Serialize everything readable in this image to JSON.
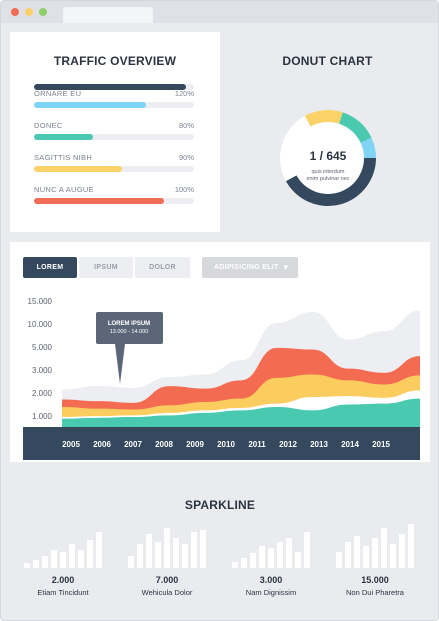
{
  "traffic": {
    "title": "TRAFFIC OVERVIEW",
    "bars": [
      {
        "label": "",
        "pct_text": "",
        "value": 0.95,
        "color": "#34495e"
      },
      {
        "label": "ORNARE EU",
        "pct_text": "120%",
        "value": 0.7,
        "color": "#7fd3f5"
      },
      {
        "label": "DONEC",
        "pct_text": "80%",
        "value": 0.37,
        "color": "#48c9b0"
      },
      {
        "label": "SAGITTIS NIBH",
        "pct_text": "90%",
        "value": 0.55,
        "color": "#fbd268"
      },
      {
        "label": "NUNC A AUGUE",
        "pct_text": "100%",
        "value": 0.81,
        "color": "#f06c55"
      }
    ]
  },
  "donut": {
    "title": "DONUT CHART",
    "center_value": "1 / 645",
    "center_sub1": "quis interdum",
    "center_sub2": "enim pulvinar nec",
    "segments": [
      {
        "value": 0.42,
        "color": "#34495e"
      },
      {
        "value": 0.25,
        "color": "#ffffff"
      },
      {
        "value": 0.13,
        "color": "#fbd268"
      },
      {
        "value": 0.13,
        "color": "#48c9b0"
      },
      {
        "value": 0.07,
        "color": "#7fd3f5"
      }
    ]
  },
  "area_chart": {
    "tabs": [
      "LOREM",
      "IPSUM",
      "DOLOR"
    ],
    "dropdown": "ADIPISICING ELIT",
    "tooltip_line1": "LOREM IPSUM",
    "tooltip_line2": "13.000 - 14.000"
  },
  "chart_data": {
    "type": "area",
    "x": [
      2005,
      2006,
      2007,
      2008,
      2009,
      2010,
      2011,
      2012,
      2013,
      2014,
      2015
    ],
    "y_ticks": [
      "15.000",
      "10.000",
      "5.000",
      "3.000",
      "2.000",
      "1.000"
    ],
    "ylim": [
      0,
      15000
    ],
    "series": [
      {
        "color": "#eceef1",
        "values": [
          4500,
          4900,
          4700,
          6000,
          6300,
          8000,
          12500,
          13800,
          10500,
          11500,
          14000
        ]
      },
      {
        "color": "#f36c52",
        "values": [
          3300,
          3100,
          2900,
          4900,
          4600,
          5600,
          9500,
          9300,
          7000,
          6500,
          8500
        ]
      },
      {
        "color": "#fbcd5f",
        "values": [
          2400,
          2200,
          2100,
          2600,
          3000,
          3400,
          5900,
          6300,
          5600,
          5100,
          6200
        ]
      },
      {
        "color": "#ffffff",
        "values": [
          1200,
          1300,
          1400,
          1700,
          2000,
          2300,
          2800,
          3600,
          3700,
          3500,
          4400
        ]
      },
      {
        "color": "#48c9b0",
        "values": [
          1000,
          1100,
          1200,
          1400,
          1700,
          2000,
          2400,
          2000,
          2700,
          2800,
          3400
        ]
      }
    ]
  },
  "sparkline": {
    "title": "SPARKLINE",
    "items": [
      {
        "value": "2.000",
        "label": "Etiam Tincidunt",
        "bars": [
          0.12,
          0.2,
          0.3,
          0.45,
          0.4,
          0.6,
          0.45,
          0.7,
          0.9
        ]
      },
      {
        "value": "7.000",
        "label": "Wehicula Dolor",
        "bars": [
          0.3,
          0.6,
          0.85,
          0.65,
          1.0,
          0.75,
          0.6,
          0.9,
          0.95
        ]
      },
      {
        "value": "3.000",
        "label": "Nam Dignissim",
        "bars": [
          0.15,
          0.25,
          0.38,
          0.55,
          0.5,
          0.65,
          0.75,
          0.4,
          0.9
        ]
      },
      {
        "value": "15.000",
        "label": "Non Dui Pharetra",
        "bars": [
          0.4,
          0.65,
          0.8,
          0.55,
          0.75,
          1.0,
          0.6,
          0.85,
          1.1
        ]
      }
    ]
  }
}
